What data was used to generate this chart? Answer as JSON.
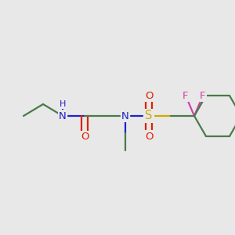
{
  "background_color": "#e8e8e8",
  "fig_size": [
    3.0,
    3.0
  ],
  "dpi": 100,
  "colors": {
    "C": "#4a7a4a",
    "N": "#2020cc",
    "O": "#dd2200",
    "S": "#ccaa00",
    "F": "#cc44aa",
    "H": "#4a7a4a"
  },
  "lw": 1.6,
  "fs": 9.5
}
